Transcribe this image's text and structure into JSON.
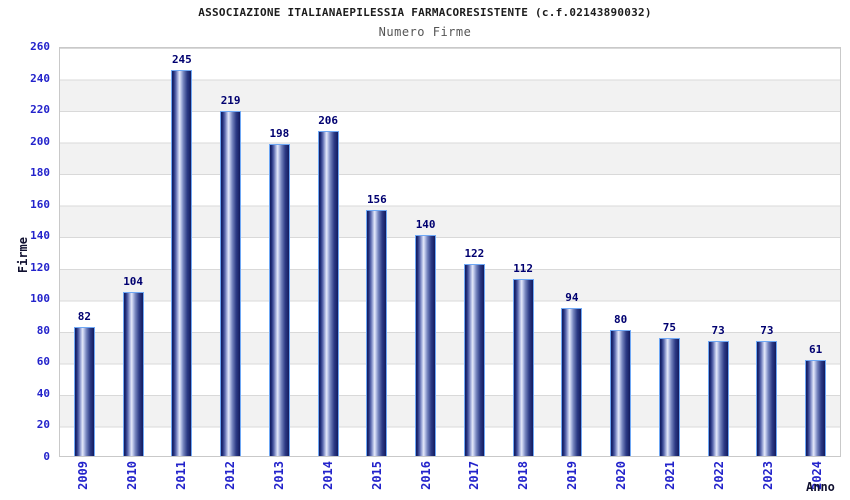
{
  "header": {
    "title": "ASSOCIAZIONE ITALIANAEPILESSIA FARMACORESISTENTE (c.f.02143890032)",
    "subtitle": "Numero Firme"
  },
  "chart_data": {
    "type": "bar",
    "title": "Numero Firme",
    "categories": [
      "2009",
      "2010",
      "2011",
      "2012",
      "2013",
      "2014",
      "2015",
      "2016",
      "2017",
      "2018",
      "2019",
      "2020",
      "2021",
      "2022",
      "2023",
      "2024"
    ],
    "values": [
      82,
      104,
      245,
      219,
      198,
      206,
      156,
      140,
      122,
      112,
      94,
      80,
      75,
      73,
      73,
      61
    ],
    "xlabel": "Anno",
    "ylabel": "Firme",
    "ylim": [
      0,
      260
    ],
    "ytick_step": 20,
    "yticks": [
      0,
      20,
      40,
      60,
      80,
      100,
      120,
      140,
      160,
      180,
      200,
      220,
      240,
      260
    ],
    "legend": "none",
    "grid": "horizontal alternating bands with gridlines every 20",
    "value_labels": "above bars",
    "colors": {
      "bar_dark": "#131b5f",
      "bar_highlight": "#e6eaf9",
      "bar_border": "#6fa8f5",
      "tick_label": "#2323cb",
      "value_label": "#000070",
      "axis_title": "#101030",
      "band_fill": "#f2f2f2",
      "grid_line": "#d9d9d9",
      "plot_border": "#c9c9c9",
      "title_color": "#1c1c1c",
      "subtitle_color": "#555555"
    }
  }
}
